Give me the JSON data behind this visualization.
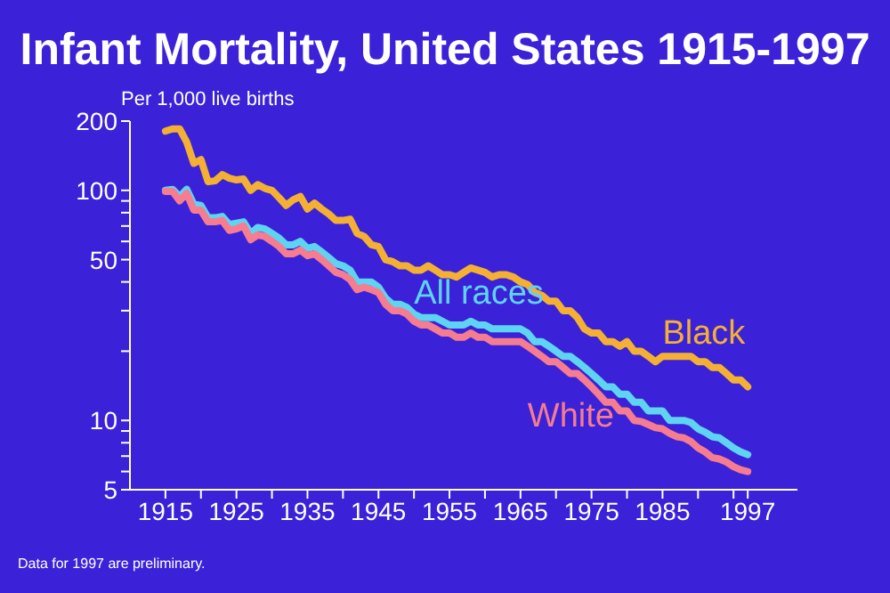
{
  "chart_data": {
    "type": "line",
    "title": "Infant Mortality, United States 1915-1997",
    "ylabel": "Per 1,000 live births",
    "annotations": [
      "Data for 1997 are preliminary."
    ],
    "x": [
      1915,
      1916,
      1917,
      1918,
      1919,
      1920,
      1921,
      1922,
      1923,
      1924,
      1925,
      1926,
      1927,
      1928,
      1929,
      1930,
      1931,
      1932,
      1933,
      1934,
      1935,
      1936,
      1937,
      1938,
      1939,
      1940,
      1941,
      1942,
      1943,
      1944,
      1945,
      1946,
      1947,
      1948,
      1949,
      1950,
      1951,
      1952,
      1953,
      1954,
      1955,
      1956,
      1957,
      1958,
      1959,
      1960,
      1961,
      1962,
      1963,
      1964,
      1965,
      1966,
      1967,
      1968,
      1969,
      1970,
      1971,
      1972,
      1973,
      1974,
      1975,
      1976,
      1977,
      1978,
      1979,
      1980,
      1981,
      1982,
      1983,
      1984,
      1985,
      1986,
      1987,
      1988,
      1989,
      1990,
      1991,
      1992,
      1993,
      1994,
      1995,
      1996,
      1997
    ],
    "series": [
      {
        "name": "Black",
        "color": "#f4b032",
        "values": [
          181,
          185,
          185,
          162,
          131,
          136,
          109,
          110,
          117,
          113,
          111,
          112,
          100,
          106,
          102,
          100,
          93,
          86,
          91,
          94,
          83,
          88,
          83,
          79,
          74,
          74,
          75,
          65,
          63,
          58,
          57,
          50,
          49,
          47,
          47,
          45,
          45,
          47,
          45,
          43,
          43,
          42,
          44,
          46,
          45,
          44,
          42,
          43,
          43,
          42,
          40,
          39,
          36,
          35,
          33,
          33,
          30,
          30,
          28,
          25,
          24,
          24,
          22,
          22,
          21,
          22,
          20,
          20,
          19,
          18,
          19,
          19,
          19,
          19,
          19,
          18,
          18,
          17,
          17,
          16,
          15,
          15,
          14
        ]
      },
      {
        "name": "All races",
        "color": "#5fd3f2",
        "values": [
          100,
          101,
          94,
          101,
          87,
          86,
          76,
          76,
          77,
          71,
          72,
          73,
          65,
          69,
          68,
          65,
          62,
          58,
          58,
          60,
          56,
          57,
          54,
          51,
          48,
          47,
          45,
          40,
          40,
          40,
          38,
          34,
          32,
          32,
          31,
          29,
          28,
          28,
          28,
          27,
          26,
          26,
          26,
          27,
          26,
          26,
          25,
          25,
          25,
          25,
          25,
          24,
          22,
          22,
          21,
          20,
          19,
          19,
          18,
          17,
          16,
          15,
          14,
          14,
          13,
          13,
          12,
          12,
          11,
          11,
          11,
          10,
          10,
          10,
          9.8,
          9.2,
          8.9,
          8.5,
          8.4,
          8.0,
          7.6,
          7.3,
          7.1
        ]
      },
      {
        "name": "White",
        "color": "#f67c90",
        "values": [
          99,
          99,
          90,
          97,
          82,
          82,
          73,
          73,
          74,
          67,
          68,
          70,
          61,
          64,
          63,
          60,
          57,
          53,
          53,
          55,
          52,
          53,
          50,
          47,
          44,
          43,
          41,
          37,
          38,
          37,
          36,
          32,
          30,
          30,
          29,
          27,
          26,
          26,
          25,
          24,
          24,
          23,
          23,
          24,
          23,
          23,
          22,
          22,
          22,
          22,
          22,
          21,
          20,
          19,
          18,
          18,
          17,
          16,
          16,
          15,
          14,
          13,
          12,
          12,
          11,
          11,
          10,
          9.9,
          9.6,
          9.3,
          9.2,
          8.8,
          8.5,
          8.4,
          8.1,
          7.6,
          7.3,
          6.9,
          6.8,
          6.6,
          6.3,
          6.1,
          6.0
        ]
      }
    ],
    "log": "y",
    "ylim": [
      5,
      200
    ],
    "yticks": [
      5,
      {
        "value": 6,
        "label": null
      },
      {
        "value": 7,
        "label": null
      },
      {
        "value": 8,
        "label": null
      },
      {
        "value": 9,
        "label": null
      },
      10,
      {
        "value": 20,
        "label": null
      },
      {
        "value": 30,
        "label": null
      },
      {
        "value": 40,
        "label": null
      },
      50,
      {
        "value": 60,
        "label": null
      },
      {
        "value": 70,
        "label": null
      },
      {
        "value": 80,
        "label": null
      },
      {
        "value": 90,
        "label": null
      },
      100,
      200
    ],
    "xlim": [
      1910,
      2004
    ],
    "xticks": [
      1915,
      {
        "value": 1920,
        "label": null
      },
      1925,
      {
        "value": 1930,
        "label": null
      },
      1935,
      {
        "value": 1940,
        "label": null
      },
      1945,
      {
        "value": 1950,
        "label": null
      },
      1955,
      {
        "value": 1960,
        "label": null
      },
      1965,
      {
        "value": 1970,
        "label": null
      },
      1975,
      {
        "value": 1980,
        "label": null
      },
      1985,
      {
        "value": 1990,
        "label": null
      },
      {
        "value": 1995,
        "label": null
      },
      1997
    ],
    "grid": false,
    "legend": false,
    "marker": "none",
    "line_style": "solid"
  }
}
